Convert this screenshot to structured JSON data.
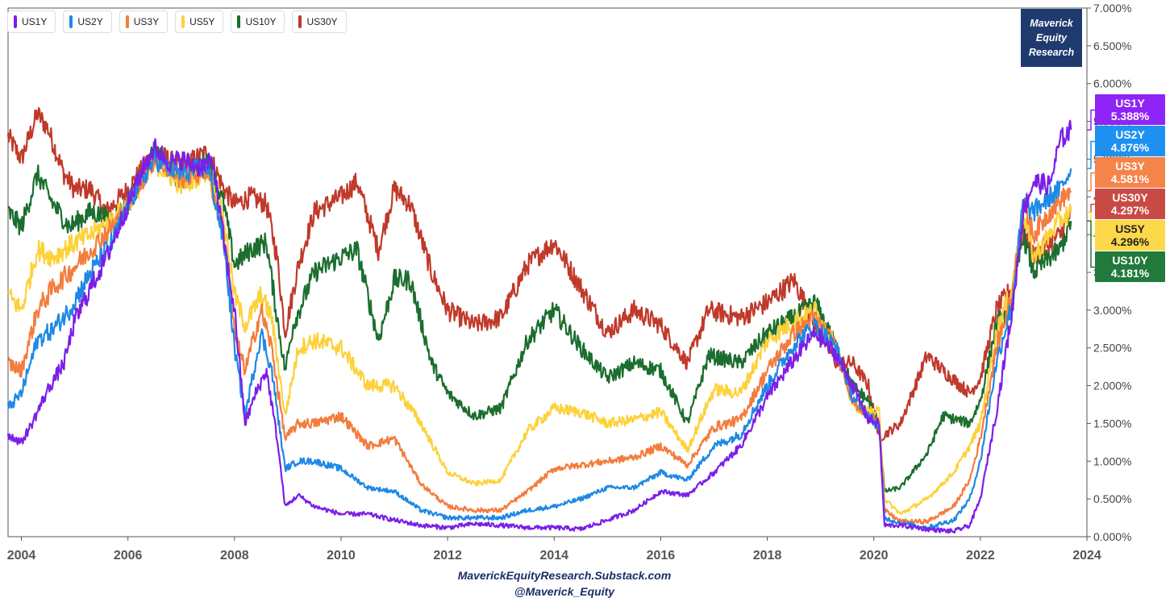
{
  "chart_data": {
    "type": "line",
    "title": "",
    "xlabel": "",
    "ylabel": "",
    "xlim": [
      2003.75,
      2024.0
    ],
    "ylim": [
      0,
      7
    ],
    "x_ticks": [
      "2004",
      "2006",
      "2008",
      "2010",
      "2012",
      "2014",
      "2016",
      "2018",
      "2020",
      "2022",
      "2024"
    ],
    "y_ticks": [
      "0.000%",
      "0.500%",
      "1.000%",
      "1.500%",
      "2.000%",
      "2.500%",
      "3.000%",
      "3.500%",
      "4.000%",
      "4.500%",
      "5.000%",
      "5.500%",
      "6.000%",
      "6.500%",
      "7.000%"
    ],
    "grid": false,
    "legend_position": "top-left",
    "series": [
      {
        "name": "US1Y",
        "color": "#7b1fe8",
        "last_label": "5.388%",
        "x": [
          2003.75,
          2004.0,
          2004.2,
          2004.5,
          2004.8,
          2005.0,
          2005.3,
          2005.6,
          2006.0,
          2006.3,
          2006.5,
          2006.8,
          2007.0,
          2007.3,
          2007.6,
          2007.8,
          2008.0,
          2008.2,
          2008.4,
          2008.6,
          2008.8,
          2008.95,
          2009.2,
          2009.5,
          2010.0,
          2010.5,
          2011.0,
          2011.5,
          2012.0,
          2012.5,
          2013.0,
          2013.5,
          2014.0,
          2014.5,
          2015.0,
          2015.5,
          2016.0,
          2016.5,
          2017.0,
          2017.5,
          2018.0,
          2018.5,
          2018.9,
          2019.3,
          2019.6,
          2019.9,
          2020.1,
          2020.2,
          2020.5,
          2021.0,
          2021.5,
          2021.8,
          2022.0,
          2022.3,
          2022.6,
          2022.8,
          2023.0,
          2023.3,
          2023.5,
          2023.7
        ],
        "y": [
          1.35,
          1.25,
          1.5,
          1.95,
          2.3,
          2.85,
          3.3,
          3.7,
          4.4,
          4.9,
          5.15,
          4.95,
          5.0,
          4.9,
          4.95,
          3.9,
          3.0,
          1.5,
          1.9,
          2.2,
          1.3,
          0.4,
          0.55,
          0.4,
          0.3,
          0.3,
          0.22,
          0.15,
          0.12,
          0.17,
          0.15,
          0.12,
          0.12,
          0.1,
          0.22,
          0.35,
          0.6,
          0.55,
          0.85,
          1.2,
          1.85,
          2.35,
          2.7,
          2.4,
          2.0,
          1.55,
          1.5,
          0.15,
          0.15,
          0.1,
          0.07,
          0.15,
          0.5,
          1.65,
          3.0,
          4.3,
          4.7,
          4.65,
          5.25,
          5.388
        ]
      },
      {
        "name": "US2Y",
        "color": "#1e88e5",
        "last_label": "4.876%",
        "x": [
          2003.75,
          2004.0,
          2004.3,
          2004.6,
          2004.9,
          2005.3,
          2005.7,
          2006.0,
          2006.5,
          2007.0,
          2007.5,
          2007.8,
          2008.0,
          2008.2,
          2008.5,
          2008.7,
          2008.95,
          2009.2,
          2009.5,
          2010.0,
          2010.5,
          2011.0,
          2011.5,
          2012.0,
          2012.5,
          2013.0,
          2013.5,
          2014.0,
          2014.5,
          2015.0,
          2015.5,
          2016.0,
          2016.5,
          2017.0,
          2017.5,
          2018.0,
          2018.5,
          2018.9,
          2019.3,
          2019.6,
          2019.9,
          2020.1,
          2020.2,
          2020.5,
          2021.0,
          2021.5,
          2021.8,
          2022.0,
          2022.3,
          2022.6,
          2022.8,
          2023.0,
          2023.3,
          2023.5,
          2023.7
        ],
        "y": [
          1.7,
          1.9,
          2.6,
          2.75,
          3.0,
          3.5,
          3.9,
          4.4,
          5.0,
          4.8,
          4.9,
          3.9,
          2.5,
          1.6,
          2.7,
          2.2,
          0.9,
          1.0,
          1.0,
          0.9,
          0.65,
          0.6,
          0.35,
          0.25,
          0.25,
          0.25,
          0.35,
          0.4,
          0.5,
          0.65,
          0.65,
          0.85,
          0.75,
          1.2,
          1.35,
          2.0,
          2.55,
          2.8,
          2.5,
          1.85,
          1.6,
          1.45,
          0.25,
          0.18,
          0.12,
          0.22,
          0.5,
          1.0,
          2.3,
          3.1,
          4.4,
          4.3,
          4.5,
          4.6,
          4.876
        ]
      },
      {
        "name": "US3Y",
        "color": "#f47c3c",
        "last_label": "4.581%",
        "x": [
          2003.75,
          2004.0,
          2004.3,
          2004.6,
          2004.9,
          2005.3,
          2005.7,
          2006.0,
          2006.5,
          2007.0,
          2007.5,
          2007.8,
          2008.0,
          2008.2,
          2008.5,
          2008.7,
          2008.95,
          2009.2,
          2009.5,
          2010.0,
          2010.5,
          2011.0,
          2011.5,
          2012.0,
          2012.5,
          2013.0,
          2013.5,
          2014.0,
          2014.5,
          2015.0,
          2015.5,
          2016.0,
          2016.5,
          2017.0,
          2017.5,
          2018.0,
          2018.5,
          2018.9,
          2019.3,
          2019.6,
          2019.9,
          2020.1,
          2020.2,
          2020.5,
          2021.0,
          2021.5,
          2021.8,
          2022.0,
          2022.3,
          2022.6,
          2022.8,
          2023.0,
          2023.3,
          2023.5,
          2023.7
        ],
        "y": [
          2.3,
          2.2,
          3.0,
          3.3,
          3.5,
          3.8,
          4.1,
          4.4,
          5.0,
          4.75,
          4.85,
          4.0,
          2.7,
          2.2,
          3.0,
          2.5,
          1.3,
          1.5,
          1.5,
          1.6,
          1.2,
          1.3,
          0.7,
          0.4,
          0.35,
          0.35,
          0.6,
          0.9,
          0.95,
          1.0,
          1.05,
          1.2,
          0.95,
          1.45,
          1.55,
          2.2,
          2.7,
          2.9,
          2.5,
          1.8,
          1.6,
          1.55,
          0.35,
          0.2,
          0.2,
          0.4,
          0.75,
          1.3,
          2.5,
          3.2,
          4.45,
          4.0,
          4.3,
          4.45,
          4.581
        ]
      },
      {
        "name": "US5Y",
        "color": "#fdd13b",
        "last_label": "4.296%",
        "x": [
          2003.75,
          2004.0,
          2004.3,
          2004.6,
          2004.9,
          2005.3,
          2005.7,
          2006.0,
          2006.5,
          2007.0,
          2007.5,
          2007.8,
          2008.0,
          2008.2,
          2008.5,
          2008.7,
          2008.95,
          2009.2,
          2009.5,
          2010.0,
          2010.5,
          2011.0,
          2011.5,
          2012.0,
          2012.5,
          2013.0,
          2013.5,
          2014.0,
          2014.5,
          2015.0,
          2015.5,
          2016.0,
          2016.5,
          2017.0,
          2017.5,
          2018.0,
          2018.5,
          2018.9,
          2019.3,
          2019.6,
          2019.9,
          2020.1,
          2020.2,
          2020.5,
          2021.0,
          2021.5,
          2021.8,
          2022.0,
          2022.3,
          2022.6,
          2022.8,
          2023.0,
          2023.3,
          2023.5,
          2023.7
        ],
        "y": [
          3.2,
          3.0,
          3.8,
          3.7,
          3.85,
          4.0,
          4.2,
          4.4,
          4.95,
          4.65,
          4.85,
          4.2,
          3.2,
          2.8,
          3.2,
          2.9,
          1.6,
          2.5,
          2.6,
          2.5,
          2.0,
          2.0,
          1.5,
          0.85,
          0.7,
          0.75,
          1.4,
          1.7,
          1.65,
          1.5,
          1.55,
          1.65,
          1.15,
          1.95,
          1.9,
          2.6,
          2.85,
          3.0,
          2.5,
          1.75,
          1.65,
          1.65,
          0.5,
          0.3,
          0.5,
          0.85,
          1.2,
          1.5,
          2.7,
          3.3,
          4.3,
          3.7,
          4.0,
          4.2,
          4.296
        ]
      },
      {
        "name": "US10Y",
        "color": "#1b6e2e",
        "last_label": "4.181%",
        "x": [
          2003.75,
          2004.0,
          2004.3,
          2004.6,
          2004.9,
          2005.3,
          2005.7,
          2006.0,
          2006.5,
          2007.0,
          2007.5,
          2007.8,
          2008.0,
          2008.3,
          2008.6,
          2008.8,
          2008.95,
          2009.1,
          2009.5,
          2010.0,
          2010.3,
          2010.7,
          2011.0,
          2011.3,
          2011.7,
          2012.0,
          2012.5,
          2013.0,
          2013.5,
          2014.0,
          2014.5,
          2015.0,
          2015.5,
          2016.0,
          2016.5,
          2016.9,
          2017.5,
          2018.0,
          2018.5,
          2018.9,
          2019.3,
          2019.6,
          2019.9,
          2020.1,
          2020.2,
          2020.5,
          2021.0,
          2021.3,
          2021.8,
          2022.0,
          2022.3,
          2022.6,
          2022.8,
          2023.0,
          2023.3,
          2023.5,
          2023.7
        ],
        "y": [
          4.3,
          4.1,
          4.8,
          4.4,
          4.1,
          4.3,
          4.2,
          4.4,
          5.1,
          4.7,
          5.0,
          4.4,
          3.6,
          3.8,
          3.9,
          2.9,
          2.2,
          2.8,
          3.5,
          3.7,
          3.8,
          2.6,
          3.4,
          3.4,
          2.3,
          1.9,
          1.6,
          1.7,
          2.6,
          3.0,
          2.5,
          2.1,
          2.3,
          2.2,
          1.5,
          2.4,
          2.3,
          2.7,
          2.9,
          3.1,
          2.5,
          2.0,
          1.8,
          1.5,
          0.6,
          0.65,
          1.1,
          1.6,
          1.5,
          1.8,
          2.8,
          3.1,
          4.0,
          3.5,
          3.7,
          3.8,
          4.181
        ]
      },
      {
        "name": "US30Y",
        "color": "#c0392b",
        "last_label": "4.297%",
        "x": [
          2003.75,
          2004.0,
          2004.3,
          2004.5,
          2004.8,
          2005.0,
          2005.3,
          2005.6,
          2006.0,
          2006.5,
          2007.0,
          2007.5,
          2007.8,
          2008.0,
          2008.3,
          2008.6,
          2008.8,
          2008.95,
          2009.2,
          2009.5,
          2010.0,
          2010.3,
          2010.7,
          2011.0,
          2011.3,
          2011.7,
          2012.0,
          2012.5,
          2013.0,
          2013.5,
          2014.0,
          2014.5,
          2015.0,
          2015.5,
          2016.0,
          2016.5,
          2016.9,
          2017.5,
          2018.0,
          2018.5,
          2018.9,
          2019.3,
          2019.6,
          2019.9,
          2020.1,
          2020.2,
          2020.5,
          2021.0,
          2021.3,
          2021.8,
          2022.0,
          2022.3,
          2022.6,
          2022.8,
          2023.0,
          2023.3,
          2023.5,
          2023.7
        ],
        "y": [
          5.3,
          5.0,
          5.6,
          5.4,
          4.8,
          4.6,
          4.6,
          4.3,
          4.6,
          5.1,
          4.9,
          5.1,
          4.6,
          4.4,
          4.5,
          4.4,
          3.7,
          2.7,
          3.6,
          4.3,
          4.5,
          4.7,
          3.8,
          4.6,
          4.4,
          3.5,
          3.0,
          2.8,
          2.9,
          3.6,
          3.9,
          3.3,
          2.7,
          3.0,
          2.8,
          2.3,
          3.0,
          2.9,
          3.1,
          3.4,
          2.8,
          2.3,
          2.3,
          2.0,
          1.3,
          1.35,
          1.5,
          2.4,
          2.2,
          1.9,
          2.1,
          3.0,
          3.3,
          4.1,
          3.7,
          3.9,
          4.0,
          4.297
        ]
      }
    ]
  },
  "legend": {
    "items": [
      {
        "label": "US1Y",
        "color": "#7b1fe8"
      },
      {
        "label": "US2Y",
        "color": "#1e88e5"
      },
      {
        "label": "US3Y",
        "color": "#f47c3c"
      },
      {
        "label": "US5Y",
        "color": "#fdd13b"
      },
      {
        "label": "US10Y",
        "color": "#1b6e2e"
      },
      {
        "label": "US30Y",
        "color": "#c0392b"
      }
    ]
  },
  "brand": {
    "line1": "Maverick",
    "line2": "Equity",
    "line3": "Research"
  },
  "end_labels": [
    {
      "name": "US1Y",
      "value": "5.388%",
      "color": "#8e24f5",
      "dark": false
    },
    {
      "name": "US2Y",
      "value": "4.876%",
      "color": "#1e90f0",
      "dark": false
    },
    {
      "name": "US3Y",
      "value": "4.581%",
      "color": "#f4844a",
      "dark": false
    },
    {
      "name": "US30Y",
      "value": "4.297%",
      "color": "#c94a45",
      "dark": false
    },
    {
      "name": "US5Y",
      "value": "4.296%",
      "color": "#fdd84a",
      "dark": true
    },
    {
      "name": "US10Y",
      "value": "4.181%",
      "color": "#217a3c",
      "dark": false
    }
  ],
  "footer": {
    "line1": "MaverickEquityResearch.Substack.com",
    "line2": "@Maverick_Equity"
  }
}
